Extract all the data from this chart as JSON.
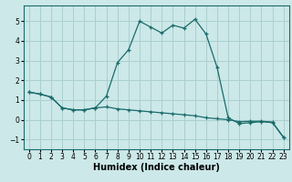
{
  "xlabel": "Humidex (Indice chaleur)",
  "xlim": [
    -0.5,
    23.5
  ],
  "ylim": [
    -1.5,
    5.8
  ],
  "yticks": [
    -1,
    0,
    1,
    2,
    3,
    4,
    5
  ],
  "xticks": [
    0,
    1,
    2,
    3,
    4,
    5,
    6,
    7,
    8,
    9,
    10,
    11,
    12,
    13,
    14,
    15,
    16,
    17,
    18,
    19,
    20,
    21,
    22,
    23
  ],
  "bg_color": "#cce8e8",
  "line_color": "#1a6b6b",
  "grid_color": "#aacfcf",
  "line1_x": [
    0,
    1,
    2,
    3,
    4,
    5,
    6,
    7,
    8,
    9,
    10,
    11,
    12,
    13,
    14,
    15,
    16,
    17,
    18,
    19,
    20,
    21,
    22,
    23
  ],
  "line1_y": [
    1.4,
    1.3,
    1.15,
    0.6,
    0.5,
    0.5,
    0.6,
    1.2,
    2.9,
    3.55,
    5.0,
    4.7,
    4.4,
    4.8,
    4.65,
    5.1,
    4.35,
    2.65,
    0.1,
    -0.2,
    -0.15,
    -0.1,
    -0.15,
    -0.9
  ],
  "line2_x": [
    0,
    1,
    2,
    3,
    4,
    5,
    6,
    7,
    8,
    9,
    10,
    11,
    12,
    13,
    14,
    15,
    16,
    17,
    18,
    19,
    20,
    21,
    22,
    23
  ],
  "line2_y": [
    1.4,
    1.3,
    1.15,
    0.6,
    0.5,
    0.5,
    0.6,
    0.65,
    0.55,
    0.5,
    0.45,
    0.4,
    0.35,
    0.3,
    0.25,
    0.2,
    0.1,
    0.05,
    0.0,
    -0.1,
    -0.08,
    -0.08,
    -0.12,
    -0.9
  ],
  "tick_fontsize": 5.5,
  "xlabel_fontsize": 7,
  "xlabel_fontweight": "bold"
}
